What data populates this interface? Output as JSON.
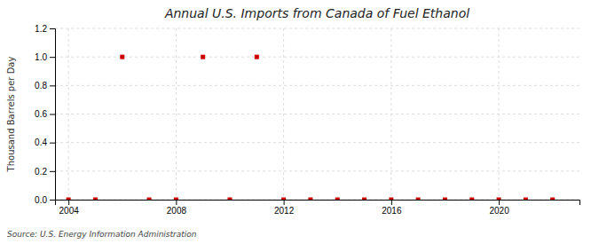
{
  "chart_data": {
    "type": "scatter",
    "title": "Annual U.S. Imports from Canada of Fuel Ethanol",
    "y_label": "Thousand Barrels per Day",
    "annotations": [
      "Source: U.S. Energy Information Administration"
    ],
    "x": [
      2004,
      2005,
      2006,
      2007,
      2008,
      2009,
      2010,
      2011,
      2012,
      2013,
      2014,
      2015,
      2016,
      2017,
      2018,
      2019,
      2020,
      2021,
      2022
    ],
    "values": [
      0.0,
      0.0,
      1.0,
      0.0,
      0.0,
      1.0,
      0.0,
      1.0,
      0.0,
      0.0,
      0.0,
      0.0,
      0.0,
      0.0,
      0.0,
      0.0,
      0.0,
      0.0,
      0.0
    ],
    "color": "#cc0000",
    "marker": "square",
    "xlim": [
      2003.5,
      2023.0
    ],
    "ylim": [
      0.0,
      1.2
    ],
    "xticks": [
      2004,
      2008,
      2012,
      2016,
      2020
    ],
    "yticks": [
      {
        "value": 0.0,
        "label": "0.0"
      },
      {
        "value": 0.2,
        "label": "0.2"
      },
      {
        "value": 0.4,
        "label": "0.4"
      },
      {
        "value": 0.6,
        "label": "0.6"
      },
      {
        "value": 0.8,
        "label": "0.8"
      },
      {
        "value": 1.0,
        "label": "1.0"
      },
      {
        "value": 1.2,
        "label": "1.2"
      }
    ],
    "grid": true
  }
}
